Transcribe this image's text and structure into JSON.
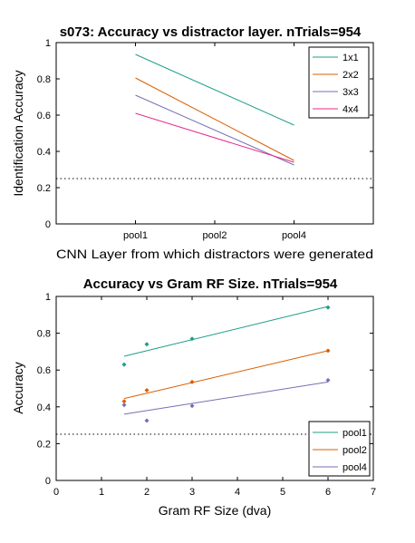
{
  "chart_data": [
    {
      "type": "line",
      "title": "s073: Accuracy vs distractor layer. nTrials=954",
      "xlabel": "CNN Layer from which distractors were generated",
      "ylabel": "Identification Accuracy",
      "categories": [
        "pool1",
        "pool2",
        "pool4"
      ],
      "xlim": [
        0,
        4
      ],
      "ylim": [
        0,
        1
      ],
      "yticks": [
        "0",
        "0.2",
        "0.4",
        "0.6",
        "0.8",
        "1"
      ],
      "chance_level": 0.25,
      "legend_position": "top-right",
      "grid": false,
      "series": [
        {
          "name": "1x1",
          "color": "#1f9e89",
          "fit": [
            0.935,
            0.545
          ]
        },
        {
          "name": "2x2",
          "color": "#d95f02",
          "fit": [
            0.805,
            0.35
          ]
        },
        {
          "name": "3x3",
          "color": "#7570b3",
          "fit": [
            0.71,
            0.325
          ]
        },
        {
          "name": "4x4",
          "color": "#e7298a",
          "fit": [
            0.61,
            0.34
          ]
        }
      ]
    },
    {
      "type": "scatter",
      "title": "Accuracy vs Gram RF Size. nTrials=954",
      "xlabel": "Gram RF Size (dva)",
      "ylabel": "Accuracy",
      "xlim": [
        0,
        7
      ],
      "ylim": [
        0,
        1
      ],
      "xticks": [
        "0",
        "1",
        "2",
        "3",
        "4",
        "5",
        "6",
        "7"
      ],
      "yticks": [
        "0",
        "0.2",
        "0.4",
        "0.6",
        "0.8",
        "1"
      ],
      "chance_level": 0.25,
      "legend_position": "bottom-right",
      "grid": false,
      "x": [
        1.5,
        2,
        3,
        6
      ],
      "series": [
        {
          "name": "pool1",
          "color": "#1f9e89",
          "values": [
            0.63,
            0.74,
            0.77,
            0.94
          ],
          "fit": [
            0.675,
            0.945
          ]
        },
        {
          "name": "pool2",
          "color": "#d95f02",
          "values": [
            0.43,
            0.49,
            0.535,
            0.705
          ],
          "fit": [
            0.445,
            0.705
          ]
        },
        {
          "name": "pool4",
          "color": "#7570b3",
          "values": [
            0.41,
            0.325,
            0.405,
            0.545
          ],
          "fit": [
            0.36,
            0.535
          ]
        }
      ]
    }
  ]
}
